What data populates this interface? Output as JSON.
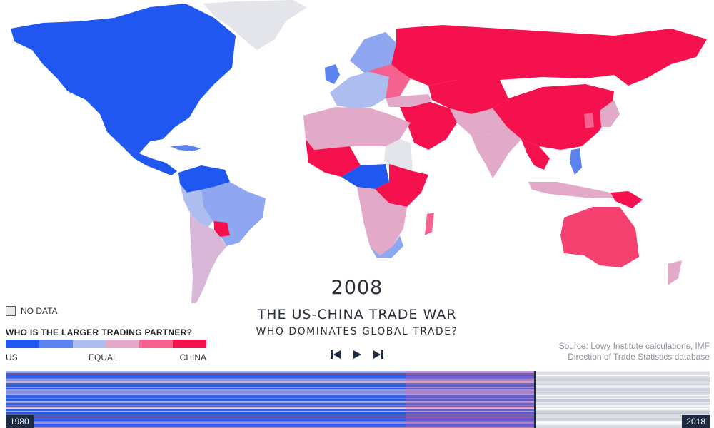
{
  "year": "2008",
  "title": "THE US-CHINA TRADE WAR",
  "subtitle": "WHO DOMINATES GLOBAL TRADE?",
  "legend": {
    "nodata_label": "NO DATA",
    "title": "WHO IS THE LARGER TRADING PARTNER?",
    "labels": {
      "us": "US",
      "equal": "EQUAL",
      "china": "CHINA"
    },
    "scale_colors": [
      "#1f57f0",
      "#5b84f0",
      "#aebdf0",
      "#e3a9c9",
      "#f5628f",
      "#f5104e"
    ],
    "nodata_color": "#e8e9ee"
  },
  "source": {
    "line1": "Source: Lowy Institute calculations, IMF",
    "line2": "Direction of Trade Statistics database"
  },
  "timeline": {
    "start_label": "1980",
    "end_label": "2018",
    "played_fraction": 0.75
  },
  "controls": {
    "prev_icon": "skip-back-icon",
    "play_icon": "play-icon",
    "next_icon": "skip-forward-icon"
  }
}
